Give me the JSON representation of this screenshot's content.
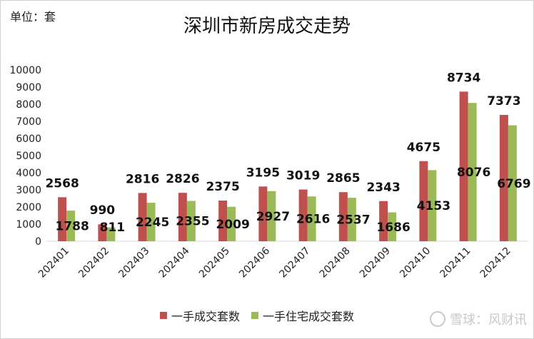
{
  "unit_label": "单位：套",
  "watermark": "雪球：风财讯",
  "colors": {
    "series1": "#c0504d",
    "series2": "#9bbb59",
    "axis": "#d9d9d9"
  },
  "chart_data": {
    "type": "bar",
    "title": "深圳市新房成交走势",
    "xlabel": "",
    "ylabel": "",
    "ylim": [
      0,
      10000
    ],
    "yticks": [
      0,
      1000,
      2000,
      3000,
      4000,
      5000,
      6000,
      7000,
      8000,
      9000,
      10000
    ],
    "grid": false,
    "legend_position": "bottom",
    "categories": [
      "202401",
      "202402",
      "202403",
      "202404",
      "202405",
      "202406",
      "202407",
      "202408",
      "202409",
      "202410",
      "202411",
      "202412"
    ],
    "series": [
      {
        "name": "一手成交套数",
        "values": [
          2568,
          990,
          2816,
          2826,
          2375,
          3195,
          3019,
          2865,
          2343,
          4675,
          8734,
          7373
        ]
      },
      {
        "name": "一手住宅成交套数",
        "values": [
          1788,
          811,
          2245,
          2355,
          2009,
          2927,
          2616,
          2537,
          1686,
          4153,
          8076,
          6769
        ]
      }
    ]
  }
}
